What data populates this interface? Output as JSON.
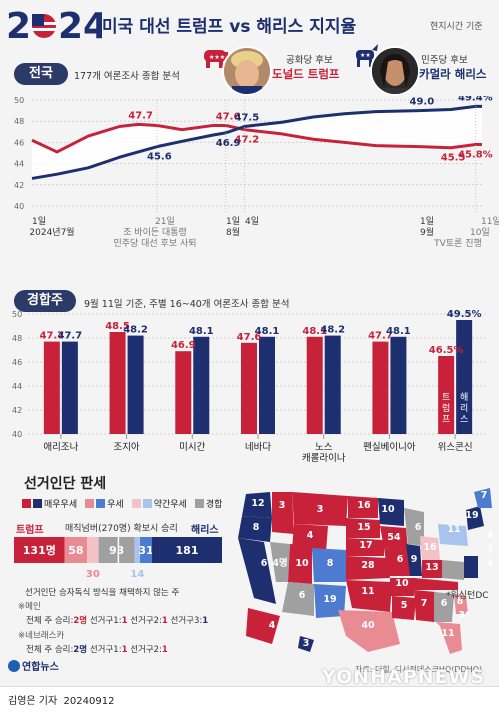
{
  "header": {
    "year": "2024",
    "title": "미국 대선 트럼프 vs 해리스 지지율",
    "timezone_note": "현지시간 기준"
  },
  "candidates": {
    "trump": {
      "party": "공화당 후보",
      "name": "도널드 트럼프",
      "color": "#c8223a"
    },
    "harris": {
      "party": "민주당 후보",
      "name": "카멀라 해리스",
      "color": "#1d2f6f"
    }
  },
  "national": {
    "label": "전국",
    "desc": "177개 여론조사 종합 분석",
    "y_ticks": [
      "50",
      "48",
      "46",
      "44",
      "42",
      "40"
    ],
    "x_labels": [
      {
        "text": "1일",
        "x": 32
      },
      {
        "text": "2024년7월",
        "x": 52
      },
      {
        "text": "21일",
        "x": 155
      },
      {
        "text": "조 바이든 대통령",
        "x": 155
      },
      {
        "text": "민주당 대선 후보 사퇴",
        "x": 155
      },
      {
        "text": "1일",
        "x": 226
      },
      {
        "text": "4일",
        "x": 245
      },
      {
        "text": "8월",
        "x": 226
      },
      {
        "text": "1일",
        "x": 420
      },
      {
        "text": "9월",
        "x": 420
      },
      {
        "text": "11일",
        "x": 481
      },
      {
        "text": "10일",
        "x": 470
      },
      {
        "text": "TV토론 진행",
        "x": 458
      }
    ],
    "annotations": {
      "trump": [
        "47.7",
        "47.6",
        "47.2",
        "45.5",
        "45.8%"
      ],
      "harris": [
        "45.6",
        "46.9",
        "47.5",
        "49.0",
        "49.4%"
      ]
    }
  },
  "chart_data": [
    {
      "type": "line",
      "title": "전국",
      "subtitle": "177개 여론조사 종합 분석",
      "ylim": [
        40,
        50
      ],
      "x_start": "2024-07-01",
      "x_end": "2024-09-11",
      "series": [
        {
          "name": "트럼프",
          "x": [
            "07-01",
            "07-05",
            "07-10",
            "07-15",
            "07-18",
            "07-21",
            "07-25",
            "07-30",
            "08-01",
            "08-04",
            "08-10",
            "08-15",
            "08-20",
            "08-25",
            "09-01",
            "09-06",
            "09-10",
            "09-11"
          ],
          "values": [
            46.2,
            45.1,
            46.6,
            47.5,
            47.7,
            47.6,
            47.2,
            47.6,
            47.6,
            47.2,
            46.8,
            46.3,
            46.0,
            45.7,
            45.6,
            45.5,
            45.8,
            45.8
          ]
        },
        {
          "name": "해리스",
          "x": [
            "07-01",
            "07-05",
            "07-10",
            "07-15",
            "07-18",
            "07-21",
            "07-25",
            "07-30",
            "08-01",
            "08-04",
            "08-10",
            "08-15",
            "08-20",
            "08-25",
            "09-01",
            "09-06",
            "09-10",
            "09-11"
          ],
          "values": [
            42.6,
            43.0,
            43.6,
            44.6,
            45.1,
            45.6,
            46.1,
            46.7,
            46.9,
            47.5,
            47.9,
            48.4,
            48.7,
            48.9,
            49.0,
            49.1,
            49.4,
            49.4
          ]
        }
      ]
    },
    {
      "type": "bar",
      "title": "경합주",
      "subtitle": "9월 11일 기준, 주별 16~40개 여론조사 종합 분석",
      "ylim": [
        40,
        50
      ],
      "categories": [
        "애리조나",
        "조지아",
        "미시간",
        "네바다",
        "노스 캐롤라이나",
        "펜실베이니아",
        "위스콘신"
      ],
      "series": [
        {
          "name": "트럼프",
          "values": [
            47.7,
            48.5,
            46.9,
            47.6,
            48.1,
            47.7,
            46.5
          ]
        },
        {
          "name": "해리스",
          "values": [
            47.7,
            48.2,
            48.1,
            48.1,
            48.2,
            48.1,
            49.5
          ]
        }
      ]
    },
    {
      "type": "bar",
      "title": "선거인단 판세",
      "categories": [
        "트럼프 매우우세",
        "트럼프 우세",
        "트럼프 약간우세",
        "경합",
        "해리스 약간우세",
        "해리스 우세",
        "해리스 매우우세"
      ],
      "values": [
        131,
        58,
        30,
        93,
        14,
        31,
        181
      ],
      "threshold": 270
    }
  ],
  "swing": {
    "label": "경합주",
    "desc": "9월 11일 기준, 주별 16~40개 여론조사 종합 분석",
    "y_ticks": [
      "50",
      "48",
      "46",
      "44",
      "42",
      "40"
    ],
    "trump_vlabel": "트럼프",
    "harris_vlabel": "해리스",
    "state_names": [
      "애리조나",
      "조지아",
      "미시간",
      "네바다",
      "노스",
      "캐롤라이나",
      "펜실베이니아",
      "위스콘신"
    ],
    "last_harris_label": "49.5%",
    "last_trump_label": "46.5%"
  },
  "electoral": {
    "title": "선거인단 판세",
    "legend": [
      "매우우세",
      "우세",
      "약간우세",
      "경합"
    ],
    "trump_label": "트럼프",
    "harris_label": "해리스",
    "threshold_label": "매직넘버(270명) 확보시 승리",
    "bar_values": [
      "131명",
      "58",
      "93",
      "31",
      "181"
    ],
    "below_values": [
      "30",
      "14"
    ],
    "note_title": "선거인단 승자독식 방식을 채택하지 않는 주",
    "maine_label": "※메인",
    "maine_line": [
      "전체 주 승리:",
      "2명",
      "선거구1:",
      "1",
      "선거구2:",
      "1",
      "선거구3:",
      "1"
    ],
    "nebraska_label": "※네브래스카",
    "nebraska_line": [
      "전체 주 승리:",
      "2명",
      "선거구1:",
      "1",
      "선거구2:",
      "1"
    ],
    "dc_note": "*워싱턴DC",
    "map_numbers": [
      "12",
      "8",
      "6",
      "4명",
      "3",
      "3",
      "4",
      "10",
      "6",
      "8",
      "19",
      "16",
      "15",
      "17",
      "28",
      "11",
      "10",
      "54",
      "6",
      "10",
      "5",
      "6",
      "9",
      "16",
      "13",
      "7",
      "40",
      "6",
      "11",
      "8",
      "11",
      "19",
      "7",
      "3*",
      "4",
      "3",
      "4",
      "3",
      "4"
    ]
  },
  "footer": {
    "source": "자료: 더힐, 디시전데스크HQ(DDHQ)",
    "byline": "김영은 기자",
    "date": "20240912",
    "agency_logo": "연합뉴스",
    "watermark": "YONHAPNEWS"
  }
}
